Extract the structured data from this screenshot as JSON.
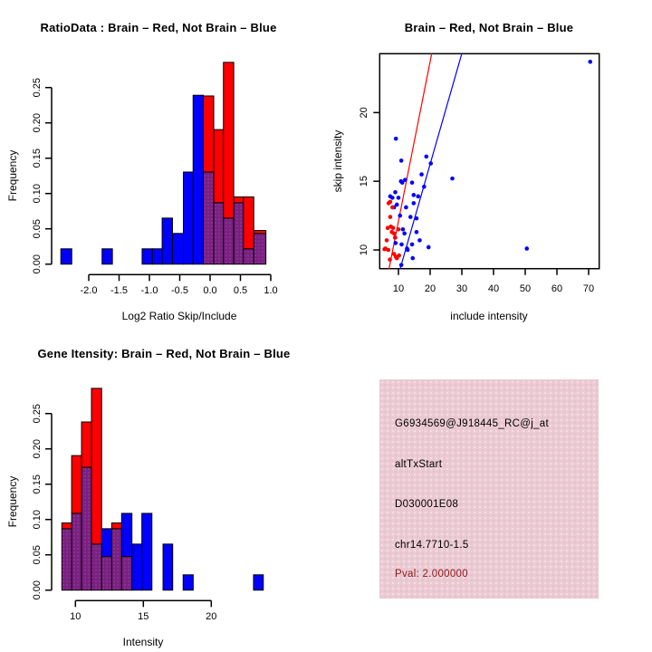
{
  "colors": {
    "brain_red": "#ff0000",
    "not_brain_blue": "#0000ff",
    "overlap_purple": "#7b2082",
    "overlap_dot": "#a05aa8",
    "info_bg": "#eccad3",
    "pval_text": "#8b1a1a",
    "axis": "#000000"
  },
  "panels": {
    "info": {
      "lines": [
        "G6934569@J918445_RC@j_at",
        "altTxStart",
        "D030001E08",
        "chr14.7710-1.5"
      ],
      "pval": "Pval: 2.000000"
    }
  },
  "chart_data": [
    {
      "id": "ratio_hist",
      "type": "bar",
      "title": "RatioData : Brain – Red, Not Brain – Blue",
      "xlabel": "Log2 Ratio Skip/Include",
      "ylabel": "Frequency",
      "legend": {
        "red": "Brain",
        "blue": "Not Brain"
      },
      "xlim": [
        -2.6,
        1.05
      ],
      "ylim": [
        0,
        0.29
      ],
      "xticks": [
        -2.0,
        -1.5,
        -1.0,
        -0.5,
        0.0,
        0.5,
        1.0
      ],
      "xtick_labels": [
        "-2.0",
        "-1.5",
        "-1.0",
        "-0.5",
        "0.0",
        "0.5",
        "1.0"
      ],
      "yticks": [
        0,
        0.05,
        0.1,
        0.15,
        0.2,
        0.25
      ],
      "ytick_labels": [
        "0.00",
        "0.05",
        "0.10",
        "0.15",
        "0.20",
        "0.25"
      ],
      "bins": [
        {
          "x0": -2.46,
          "x1": -2.28,
          "blue": 0.0217,
          "red": 0
        },
        {
          "x0": -1.78,
          "x1": -1.61,
          "blue": 0.0217,
          "red": 0
        },
        {
          "x0": -1.12,
          "x1": -0.95,
          "blue": 0.0217,
          "red": 0
        },
        {
          "x0": -0.95,
          "x1": -0.79,
          "blue": 0.0217,
          "red": 0
        },
        {
          "x0": -0.79,
          "x1": -0.62,
          "blue": 0.0652,
          "red": 0
        },
        {
          "x0": -0.62,
          "x1": -0.44,
          "blue": 0.0435,
          "red": 0
        },
        {
          "x0": -0.44,
          "x1": -0.28,
          "blue": 0.1304,
          "red": 0
        },
        {
          "x0": -0.28,
          "x1": -0.11,
          "blue": 0.2391,
          "red": 0
        },
        {
          "x0": -0.11,
          "x1": 0.06,
          "blue": 0.1304,
          "red": 0.2381
        },
        {
          "x0": 0.06,
          "x1": 0.22,
          "blue": 0.087,
          "red": 0.1905
        },
        {
          "x0": 0.22,
          "x1": 0.39,
          "blue": 0.0652,
          "red": 0.2857
        },
        {
          "x0": 0.39,
          "x1": 0.55,
          "blue": 0.087,
          "red": 0.0952
        },
        {
          "x0": 0.55,
          "x1": 0.72,
          "blue": 0.0217,
          "red": 0.0952
        },
        {
          "x0": 0.72,
          "x1": 0.92,
          "blue": 0.0435,
          "red": 0.0476
        }
      ]
    },
    {
      "id": "scatter",
      "type": "scatter",
      "title": "Brain – Red, Not Brain – Blue",
      "xlabel": "include intensity",
      "ylabel": "skip intensity",
      "xlim": [
        4.1,
        73.3
      ],
      "ylim": [
        8.6,
        24.3
      ],
      "xticks": [
        10,
        20,
        30,
        40,
        50,
        60,
        70
      ],
      "xtick_labels": [
        "10",
        "20",
        "30",
        "40",
        "50",
        "60",
        "70"
      ],
      "yticks": [
        10,
        15,
        20
      ],
      "ytick_labels": [
        "10",
        "15",
        "20"
      ],
      "series": [
        {
          "name": "Brain",
          "color_key": "brain_red",
          "points": [
            [
              7.4,
              13.5
            ],
            [
              6.9,
              13.4
            ],
            [
              8.1,
              13.1
            ],
            [
              7.4,
              12.4
            ],
            [
              6.6,
              11.6
            ],
            [
              7.6,
              11.7
            ],
            [
              8.3,
              11.6
            ],
            [
              10.0,
              11.5
            ],
            [
              7.9,
              11.3
            ],
            [
              8.6,
              11.2
            ],
            [
              8.9,
              10.9
            ],
            [
              6.3,
              10.7
            ],
            [
              5.9,
              10.1
            ],
            [
              5.6,
              10.05
            ],
            [
              6.8,
              10.0
            ],
            [
              8.6,
              9.7
            ],
            [
              9.5,
              9.4
            ],
            [
              7.3,
              9.3
            ],
            [
              9.2,
              9.5
            ],
            [
              10.2,
              9.6
            ]
          ]
        },
        {
          "name": "Not Brain",
          "color_key": "not_brain_blue",
          "points": [
            [
              70.5,
              23.7
            ],
            [
              50.5,
              10.1
            ],
            [
              27.0,
              15.2
            ],
            [
              9.2,
              18.1
            ],
            [
              10.9,
              16.5
            ],
            [
              18.8,
              16.8
            ],
            [
              20.2,
              16.3
            ],
            [
              17.3,
              15.5
            ],
            [
              10.8,
              15.0
            ],
            [
              12.1,
              15.1
            ],
            [
              11.2,
              14.9
            ],
            [
              14.3,
              14.9
            ],
            [
              18.1,
              14.6
            ],
            [
              9.0,
              14.2
            ],
            [
              14.8,
              14.0
            ],
            [
              7.4,
              13.9
            ],
            [
              8.1,
              13.8
            ],
            [
              10.0,
              13.8
            ],
            [
              16.2,
              13.9
            ],
            [
              9.5,
              13.3
            ],
            [
              12.4,
              13.1
            ],
            [
              14.8,
              13.4
            ],
            [
              8.6,
              13.1
            ],
            [
              10.5,
              12.5
            ],
            [
              13.8,
              12.4
            ],
            [
              15.7,
              12.3
            ],
            [
              11.4,
              11.5
            ],
            [
              11.9,
              11.2
            ],
            [
              15.7,
              11.3
            ],
            [
              16.7,
              10.7
            ],
            [
              19.5,
              10.2
            ],
            [
              14.3,
              10.4
            ],
            [
              12.9,
              10.0
            ],
            [
              9.1,
              10.5
            ],
            [
              14.5,
              9.4
            ],
            [
              10.9,
              8.9
            ],
            [
              12.7,
              10.1
            ],
            [
              11.0,
              10.4
            ],
            [
              9.0,
              10.9
            ]
          ]
        }
      ],
      "fit_lines": [
        {
          "name": "brain-fit",
          "color_key": "brain_red",
          "x1": 7.0,
          "y1": 8.6,
          "x2": 20.5,
          "y2": 24.3
        },
        {
          "name": "not-brain-fit",
          "color_key": "not_brain_blue",
          "x1": 10.5,
          "y1": 8.6,
          "x2": 30.0,
          "y2": 24.3
        }
      ]
    },
    {
      "id": "gene_hist",
      "type": "bar",
      "title": "Gene Itensity: Brain – Red, Not Brain – Blue",
      "xlabel": "Intensity",
      "ylabel": "Frequency",
      "legend": {
        "red": "Brain",
        "blue": "Not Brain"
      },
      "xlim": [
        8.8,
        24.2
      ],
      "ylim": [
        0,
        0.29
      ],
      "xticks": [
        10,
        15,
        20
      ],
      "xtick_labels": [
        "10",
        "15",
        "20"
      ],
      "yticks": [
        0,
        0.05,
        0.1,
        0.15,
        0.2,
        0.25
      ],
      "ytick_labels": [
        "0.00",
        "0.05",
        "0.10",
        "0.15",
        "0.20",
        "0.25"
      ],
      "bins": [
        {
          "x0": 9.0,
          "x1": 9.72,
          "blue": 0.087,
          "red": 0.0952
        },
        {
          "x0": 9.72,
          "x1": 10.45,
          "blue": 0.1087,
          "red": 0.1905
        },
        {
          "x0": 10.45,
          "x1": 11.18,
          "blue": 0.1739,
          "red": 0.2381
        },
        {
          "x0": 11.18,
          "x1": 11.93,
          "blue": 0.0652,
          "red": 0.2857
        },
        {
          "x0": 11.93,
          "x1": 12.67,
          "blue": 0.087,
          "red": 0.0476
        },
        {
          "x0": 12.67,
          "x1": 13.4,
          "blue": 0.087,
          "red": 0.0952
        },
        {
          "x0": 13.4,
          "x1": 14.16,
          "blue": 0.1087,
          "red": 0.0476
        },
        {
          "x0": 14.16,
          "x1": 14.89,
          "blue": 0.0652,
          "red": 0
        },
        {
          "x0": 14.89,
          "x1": 15.63,
          "blue": 0.1087,
          "red": 0
        },
        {
          "x0": 16.45,
          "x1": 17.16,
          "blue": 0.0652,
          "red": 0
        },
        {
          "x0": 17.93,
          "x1": 18.67,
          "blue": 0.0217,
          "red": 0
        },
        {
          "x0": 23.11,
          "x1": 23.83,
          "blue": 0.0217,
          "red": 0
        }
      ]
    }
  ]
}
